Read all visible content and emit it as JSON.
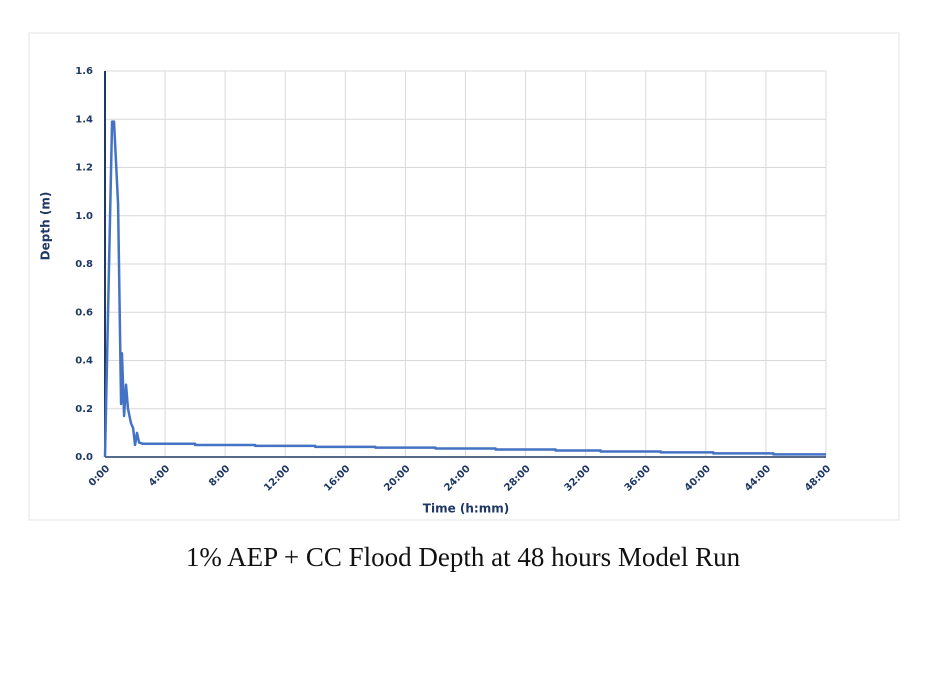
{
  "chart_data": {
    "type": "line",
    "title": "1% AEP + CC  Flood Depth at 48 hours Model Run",
    "x_label": "Time (h:mm)",
    "y_label": "Depth (m)",
    "x": [
      0,
      0.47,
      0.6,
      0.87,
      1.07,
      1.13,
      1.27,
      1.4,
      1.53,
      1.73,
      1.87,
      2.0,
      2.13,
      2.27,
      2.5,
      6,
      6,
      10,
      10,
      14,
      14,
      18,
      18,
      22,
      22,
      26,
      26,
      30,
      30,
      33,
      33,
      37,
      37,
      40.5,
      40.5,
      44.5,
      44.5,
      48
    ],
    "series": [
      {
        "color": "#4472c4",
        "values": [
          0,
          1.39,
          1.39,
          1.05,
          0.22,
          0.43,
          0.17,
          0.3,
          0.2,
          0.14,
          0.12,
          0.05,
          0.1,
          0.06,
          0.055,
          0.055,
          0.05,
          0.05,
          0.046,
          0.046,
          0.042,
          0.042,
          0.039,
          0.039,
          0.035,
          0.035,
          0.031,
          0.031,
          0.027,
          0.027,
          0.023,
          0.023,
          0.019,
          0.019,
          0.015,
          0.015,
          0.011,
          0.011
        ]
      }
    ],
    "xlim": [
      0,
      48
    ],
    "ylim": [
      0,
      1.6
    ],
    "xticks": [
      {
        "value": 0,
        "label": "0:00"
      },
      {
        "value": 4,
        "label": "4:00"
      },
      {
        "value": 8,
        "label": "8:00"
      },
      {
        "value": 12,
        "label": "12:00"
      },
      {
        "value": 16,
        "label": "16:00"
      },
      {
        "value": 20,
        "label": "20:00"
      },
      {
        "value": 24,
        "label": "24:00"
      },
      {
        "value": 28,
        "label": "28:00"
      },
      {
        "value": 32,
        "label": "32:00"
      },
      {
        "value": 36,
        "label": "36:00"
      },
      {
        "value": 40,
        "label": "40:00"
      },
      {
        "value": 44,
        "label": "44:00"
      },
      {
        "value": 48,
        "label": "48:00"
      }
    ],
    "yticks": [
      {
        "value": 0,
        "label": "0.0"
      },
      0.2,
      0.4,
      0.6,
      0.8,
      {
        "value": 1,
        "label": "1.0"
      },
      1.2,
      1.4,
      1.6
    ],
    "grid": true
  }
}
